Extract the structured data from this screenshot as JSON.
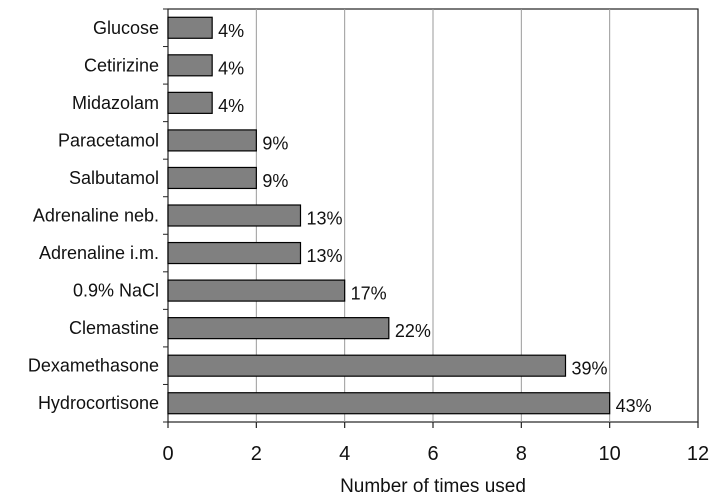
{
  "chart_data": {
    "type": "bar",
    "orientation": "horizontal",
    "categories": [
      "Glucose",
      "Cetirizine",
      "Midazolam",
      "Paracetamol",
      "Salbutamol",
      "Adrenaline neb.",
      "Adrenaline i.m.",
      "0.9% NaCl",
      "Clemastine",
      "Dexamethasone",
      "Hydrocortisone"
    ],
    "values": [
      1,
      1,
      1,
      2,
      2,
      3,
      3,
      4,
      5,
      9,
      10
    ],
    "data_labels": [
      "4%",
      "4%",
      "4%",
      "9%",
      "9%",
      "13%",
      "13%",
      "17%",
      "22%",
      "39%",
      "43%"
    ],
    "title": "",
    "xlabel": "Number of times used",
    "ylabel": "",
    "xlim": [
      0,
      12
    ],
    "xticks": [
      0,
      2,
      4,
      6,
      8,
      10,
      12
    ],
    "xtick_labels": [
      "0",
      "2",
      "4",
      "6",
      "8",
      "10",
      "12"
    ],
    "grid": "vertical",
    "legend": "none",
    "bar_color": "#808080",
    "bar_edge_color": "#000000",
    "grid_color": "#9a9a9a"
  }
}
